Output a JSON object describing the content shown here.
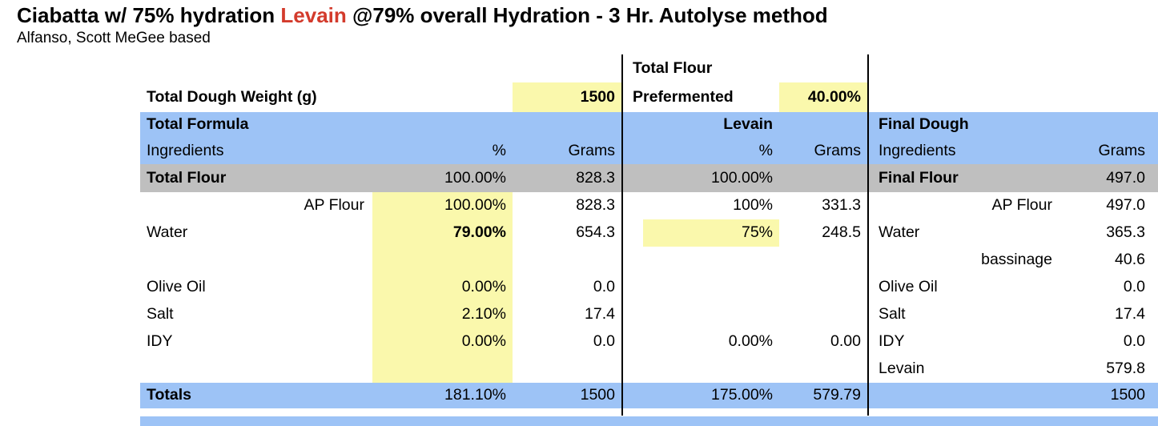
{
  "colors": {
    "header_blue": "#9DC3F6",
    "band_gray": "#BFBFBF",
    "input_yellow": "#FAF8AC",
    "accent_red": "#D33B2C"
  },
  "title": {
    "part1": "Ciabatta w/ 75% hydration ",
    "levain": "Levain",
    "part2": " @79% overall Hydration - 3 Hr. Autolyse method"
  },
  "subtitle": "Alfanso, Scott MeGee based",
  "setup": {
    "dough_weight_label": "Total Dough Weight (g)",
    "dough_weight_value": "1500",
    "prefermented_line1": "Total Flour",
    "prefermented_line2": "Prefermented",
    "prefermented_value": "40.00%"
  },
  "headers": {
    "total_formula": "Total Formula",
    "levain": "Levain",
    "final_dough": "Final Dough",
    "ingredients": "Ingredients",
    "percent": "%",
    "grams": "Grams"
  },
  "flour_band": {
    "tf_label": "Total Flour",
    "tf_pct": "100.00%",
    "tf_g": "828.3",
    "lv_pct": "100.00%",
    "lv_g": "",
    "fd_label": "Final Flour",
    "fd_g": "497.0"
  },
  "rows": [
    {
      "tf_label": "AP Flour",
      "tf_align": "right",
      "tf_pct": "100.00%",
      "tf_g": "828.3",
      "lv_pct": "100%",
      "lv_g": "331.3",
      "fd_label": "AP Flour",
      "fd_align": "right",
      "fd_g": "497.0"
    },
    {
      "tf_label": "Water",
      "tf_pct": "79.00%",
      "tf_pct_bold": true,
      "tf_g": "654.3",
      "lv_pct": "75%",
      "lv_yellow": true,
      "lv_g": "248.5",
      "fd_label": "Water",
      "fd_g": "365.3"
    },
    {
      "tf_label": "",
      "tf_pct": "",
      "tf_g": "",
      "lv_pct": "",
      "lv_g": "",
      "fd_label": "bassinage",
      "fd_align": "right",
      "fd_g": "40.6"
    },
    {
      "tf_label": "Olive Oil",
      "tf_pct": "0.00%",
      "tf_g": "0.0",
      "lv_pct": "",
      "lv_g": "",
      "fd_label": "Olive Oil",
      "fd_g": "0.0"
    },
    {
      "tf_label": "Salt",
      "tf_pct": "2.10%",
      "tf_g": "17.4",
      "lv_pct": "",
      "lv_g": "",
      "fd_label": "Salt",
      "fd_g": "17.4"
    },
    {
      "tf_label": "IDY",
      "tf_pct": "0.00%",
      "tf_g": "0.0",
      "lv_pct": "0.00%",
      "lv_g": "0.00",
      "fd_label": "IDY",
      "fd_g": "0.0"
    },
    {
      "tf_label": "",
      "tf_pct": "",
      "tf_g": "",
      "lv_pct": "",
      "lv_g": "",
      "fd_label": "Levain",
      "fd_g": "579.8"
    }
  ],
  "totals": {
    "label": "Totals",
    "tf_pct": "181.10%",
    "tf_g": "1500",
    "lv_pct": "175.00%",
    "lv_g": "579.79",
    "fd_g": "1500"
  }
}
